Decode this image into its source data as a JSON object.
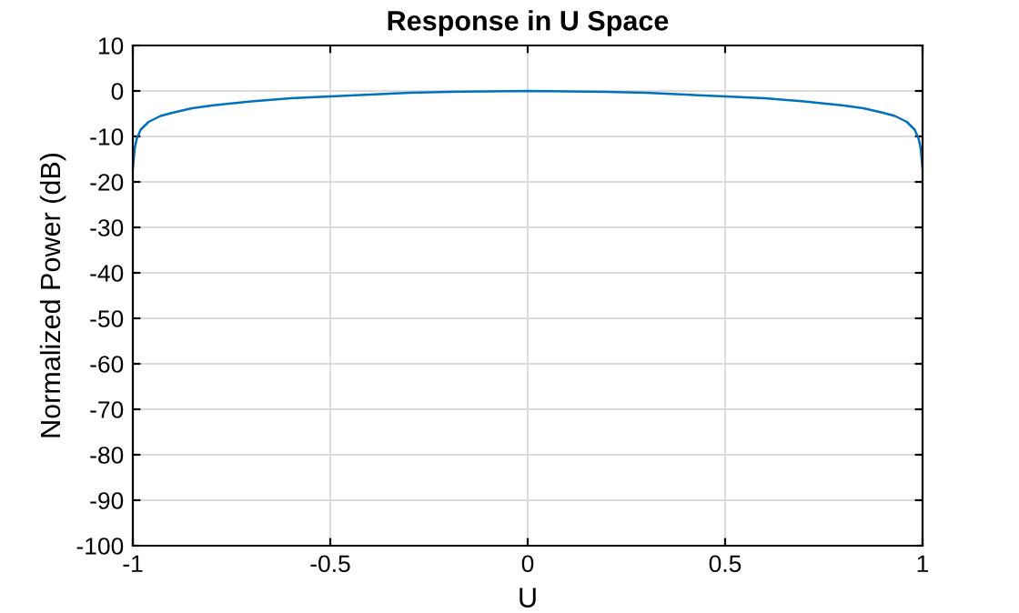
{
  "chart_data": {
    "type": "line",
    "title": "Response in U Space",
    "xlabel": "U",
    "ylabel": "Normalized Power (dB)",
    "x": [
      -1,
      -0.995,
      -0.99,
      -0.98,
      -0.96,
      -0.93,
      -0.9,
      -0.85,
      -0.8,
      -0.7,
      -0.6,
      -0.5,
      -0.4,
      -0.3,
      -0.2,
      -0.1,
      0,
      0.1,
      0.2,
      0.3,
      0.4,
      0.5,
      0.6,
      0.7,
      0.8,
      0.85,
      0.9,
      0.93,
      0.96,
      0.98,
      0.99,
      0.995,
      1
    ],
    "series": [
      {
        "color": "#0072bd",
        "values": [
          -17,
          -12.5,
          -10.5,
          -8.5,
          -6.8,
          -5.5,
          -4.8,
          -3.8,
          -3.2,
          -2.3,
          -1.6,
          -1.2,
          -0.8,
          -0.4,
          -0.2,
          -0.1,
          0,
          -0.1,
          -0.2,
          -0.4,
          -0.8,
          -1.2,
          -1.6,
          -2.3,
          -3.2,
          -3.8,
          -4.8,
          -5.5,
          -6.8,
          -8.5,
          -10.5,
          -12.5,
          -17
        ]
      }
    ],
    "xlim": [
      -1,
      1
    ],
    "xticks": [
      -1,
      -0.5,
      0,
      0.5,
      1
    ],
    "ylim": [
      -100,
      10
    ],
    "yticks": [
      -100,
      -90,
      -80,
      -70,
      -60,
      -50,
      -40,
      -30,
      -20,
      -10,
      0,
      10
    ],
    "grid": true,
    "marker": "none",
    "line_style": "solid"
  }
}
